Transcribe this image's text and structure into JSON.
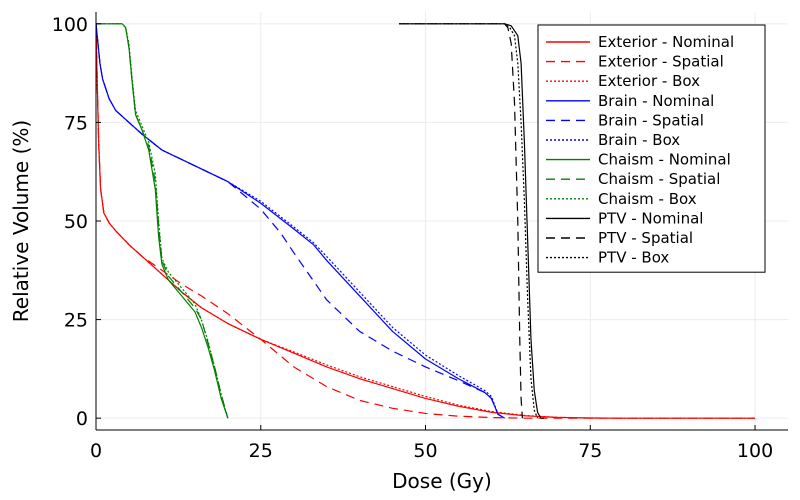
{
  "chart_data": {
    "type": "line",
    "title": "",
    "xlabel": "Dose (Gy)",
    "ylabel": "Relative Volume (%)",
    "xlim": [
      0,
      105
    ],
    "ylim": [
      -3,
      103
    ],
    "xticks": [
      0,
      25,
      50,
      75,
      100
    ],
    "yticks": [
      0,
      25,
      50,
      75,
      100
    ],
    "grid": true,
    "legend_position": "top-right",
    "series": [
      {
        "name": "Exterior - Nominal",
        "color": "#ff0000",
        "style": "solid",
        "points": [
          [
            0,
            100
          ],
          [
            0.15,
            88
          ],
          [
            0.4,
            70
          ],
          [
            0.7,
            58
          ],
          [
            1.2,
            52
          ],
          [
            2,
            49.5
          ],
          [
            3,
            47.5
          ],
          [
            5,
            44
          ],
          [
            7,
            41
          ],
          [
            10,
            36.5
          ],
          [
            13,
            32
          ],
          [
            16,
            28
          ],
          [
            20,
            24
          ],
          [
            25,
            20
          ],
          [
            30,
            16.5
          ],
          [
            35,
            13
          ],
          [
            40,
            10
          ],
          [
            45,
            7.5
          ],
          [
            50,
            5
          ],
          [
            55,
            3
          ],
          [
            60,
            1.5
          ],
          [
            65,
            0.6
          ],
          [
            70,
            0.2
          ],
          [
            75,
            0.05
          ],
          [
            80,
            0
          ],
          [
            100,
            0
          ]
        ]
      },
      {
        "name": "Exterior - Spatial",
        "color": "#ff0000",
        "style": "dashed",
        "points": [
          [
            0,
            100
          ],
          [
            0.15,
            88
          ],
          [
            0.4,
            70
          ],
          [
            0.7,
            58
          ],
          [
            1.2,
            52
          ],
          [
            2,
            49.5
          ],
          [
            3,
            47.5
          ],
          [
            5,
            44
          ],
          [
            7,
            41
          ],
          [
            10,
            37.5
          ],
          [
            13,
            34
          ],
          [
            16,
            31
          ],
          [
            20,
            26.5
          ],
          [
            25,
            20
          ],
          [
            30,
            13
          ],
          [
            35,
            8
          ],
          [
            40,
            4.5
          ],
          [
            45,
            2.5
          ],
          [
            50,
            1.2
          ],
          [
            55,
            0.5
          ],
          [
            60,
            0.15
          ],
          [
            65,
            0
          ],
          [
            100,
            0
          ]
        ]
      },
      {
        "name": "Exterior - Box",
        "color": "#ff0000",
        "style": "dotted",
        "points": [
          [
            0,
            100
          ],
          [
            0.15,
            88
          ],
          [
            0.4,
            70
          ],
          [
            0.7,
            58
          ],
          [
            1.2,
            52
          ],
          [
            2,
            49.5
          ],
          [
            3,
            47.5
          ],
          [
            5,
            44
          ],
          [
            7,
            41
          ],
          [
            10,
            36.5
          ],
          [
            13,
            32
          ],
          [
            16,
            28
          ],
          [
            20,
            24
          ],
          [
            25,
            20
          ],
          [
            30,
            16.8
          ],
          [
            35,
            13.5
          ],
          [
            40,
            10.5
          ],
          [
            45,
            8
          ],
          [
            50,
            5.5
          ],
          [
            55,
            3.3
          ],
          [
            60,
            1.7
          ],
          [
            65,
            0.7
          ],
          [
            70,
            0.2
          ],
          [
            75,
            0.05
          ],
          [
            80,
            0
          ],
          [
            100,
            0
          ]
        ]
      },
      {
        "name": "Brain - Nominal",
        "color": "#0000ff",
        "style": "solid",
        "points": [
          [
            0,
            100
          ],
          [
            0.3,
            95
          ],
          [
            0.6,
            90
          ],
          [
            1,
            86
          ],
          [
            2,
            81
          ],
          [
            3,
            78
          ],
          [
            5,
            75
          ],
          [
            7,
            72
          ],
          [
            10,
            68
          ],
          [
            15,
            64
          ],
          [
            20,
            60
          ],
          [
            25,
            54.5
          ],
          [
            30,
            48
          ],
          [
            33,
            44
          ],
          [
            35,
            40
          ],
          [
            40,
            31
          ],
          [
            45,
            22
          ],
          [
            50,
            15
          ],
          [
            55,
            10
          ],
          [
            59,
            6.5
          ],
          [
            60,
            5
          ],
          [
            61,
            1
          ],
          [
            62,
            0
          ]
        ]
      },
      {
        "name": "Brain - Spatial",
        "color": "#0000ff",
        "style": "dashed",
        "points": [
          [
            0,
            100
          ],
          [
            0.3,
            95
          ],
          [
            0.6,
            90
          ],
          [
            1,
            86
          ],
          [
            2,
            81
          ],
          [
            3,
            78
          ],
          [
            5,
            75
          ],
          [
            7,
            72
          ],
          [
            10,
            68
          ],
          [
            15,
            64
          ],
          [
            20,
            60
          ],
          [
            25,
            53
          ],
          [
            28,
            47
          ],
          [
            30,
            42
          ],
          [
            35,
            30
          ],
          [
            40,
            22
          ],
          [
            45,
            17
          ],
          [
            50,
            13
          ],
          [
            55,
            9.5
          ],
          [
            59,
            6.5
          ],
          [
            60,
            5
          ],
          [
            61,
            1
          ],
          [
            62,
            0
          ]
        ]
      },
      {
        "name": "Brain - Box",
        "color": "#0000ff",
        "style": "dotted",
        "points": [
          [
            0,
            100
          ],
          [
            0.3,
            95
          ],
          [
            0.6,
            90
          ],
          [
            1,
            86
          ],
          [
            2,
            81
          ],
          [
            3,
            78
          ],
          [
            5,
            75
          ],
          [
            7,
            72
          ],
          [
            10,
            68
          ],
          [
            15,
            64
          ],
          [
            20,
            60
          ],
          [
            25,
            55
          ],
          [
            30,
            48.5
          ],
          [
            33,
            44.5
          ],
          [
            35,
            41
          ],
          [
            40,
            32
          ],
          [
            45,
            23
          ],
          [
            50,
            16
          ],
          [
            55,
            10.8
          ],
          [
            59,
            7
          ],
          [
            60,
            5.5
          ],
          [
            61,
            1
          ],
          [
            62,
            0
          ]
        ]
      },
      {
        "name": "Chaism - Nominal",
        "color": "#008000",
        "style": "solid",
        "points": [
          [
            0,
            100
          ],
          [
            4,
            100
          ],
          [
            4.5,
            99
          ],
          [
            5,
            94
          ],
          [
            5.5,
            85
          ],
          [
            6,
            77
          ],
          [
            7,
            73
          ],
          [
            8,
            68
          ],
          [
            9,
            58
          ],
          [
            9.5,
            46
          ],
          [
            10,
            39
          ],
          [
            11,
            35
          ],
          [
            13,
            31
          ],
          [
            15,
            27
          ],
          [
            16,
            23
          ],
          [
            17,
            18
          ],
          [
            18,
            12
          ],
          [
            19,
            5
          ],
          [
            20,
            0
          ]
        ]
      },
      {
        "name": "Chaism - Spatial",
        "color": "#008000",
        "style": "dashed",
        "points": [
          [
            0,
            100
          ],
          [
            4,
            100
          ],
          [
            4.5,
            99
          ],
          [
            5,
            94
          ],
          [
            5.5,
            85
          ],
          [
            6,
            77
          ],
          [
            7,
            73
          ],
          [
            8,
            69
          ],
          [
            9,
            60
          ],
          [
            9.5,
            49
          ],
          [
            10,
            40
          ],
          [
            11,
            36
          ],
          [
            13,
            32
          ],
          [
            15,
            28
          ],
          [
            16,
            25
          ],
          [
            17,
            19
          ],
          [
            18,
            13
          ],
          [
            19,
            6
          ],
          [
            20,
            0
          ]
        ]
      },
      {
        "name": "Chaism - Box",
        "color": "#008000",
        "style": "dotted",
        "points": [
          [
            0,
            100
          ],
          [
            4,
            100
          ],
          [
            4.5,
            99
          ],
          [
            5,
            95
          ],
          [
            5.5,
            86
          ],
          [
            6,
            78
          ],
          [
            7,
            74
          ],
          [
            8,
            70
          ],
          [
            9,
            62
          ],
          [
            9.5,
            50
          ],
          [
            10,
            40.5
          ],
          [
            11,
            37
          ],
          [
            13,
            33
          ],
          [
            15,
            29
          ],
          [
            16,
            25
          ],
          [
            17,
            19.5
          ],
          [
            18,
            13
          ],
          [
            19,
            6
          ],
          [
            20,
            0
          ]
        ]
      },
      {
        "name": "PTV - Nominal",
        "color": "#000000",
        "style": "solid",
        "points": [
          [
            46,
            100
          ],
          [
            62,
            100
          ],
          [
            63,
            99.5
          ],
          [
            64,
            97
          ],
          [
            64.5,
            90
          ],
          [
            65,
            70
          ],
          [
            65.5,
            45
          ],
          [
            66,
            20
          ],
          [
            66.5,
            7
          ],
          [
            67,
            1.5
          ],
          [
            67.5,
            0
          ],
          [
            68,
            0
          ]
        ]
      },
      {
        "name": "PTV - Spatial",
        "color": "#000000",
        "style": "dashed",
        "points": [
          [
            46,
            100
          ],
          [
            62,
            100
          ],
          [
            62.5,
            99
          ],
          [
            63,
            95
          ],
          [
            63.5,
            80
          ],
          [
            64,
            50
          ],
          [
            64.3,
            20
          ],
          [
            64.5,
            5
          ],
          [
            64.7,
            0
          ]
        ]
      },
      {
        "name": "PTV - Box",
        "color": "#000000",
        "style": "dotted",
        "points": [
          [
            46,
            100
          ],
          [
            62,
            100
          ],
          [
            62.8,
            99
          ],
          [
            63.5,
            97
          ],
          [
            64,
            90
          ],
          [
            64.5,
            75
          ],
          [
            65,
            55
          ],
          [
            65.5,
            30
          ],
          [
            66,
            10
          ],
          [
            66.5,
            2
          ],
          [
            67,
            0
          ]
        ]
      }
    ]
  }
}
